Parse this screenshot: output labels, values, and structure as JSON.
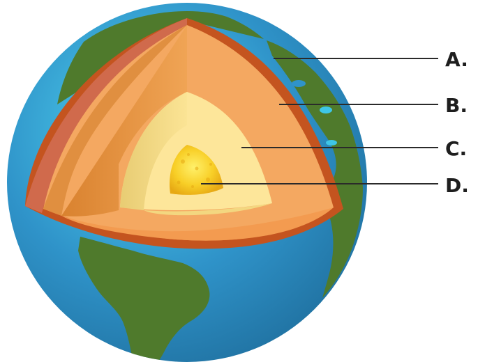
{
  "labels": [
    {
      "id": "a",
      "text": "A."
    },
    {
      "id": "b",
      "text": "B."
    },
    {
      "id": "c",
      "text": "C."
    },
    {
      "id": "d",
      "text": "D."
    }
  ],
  "colors": {
    "ocean": "#2f93c9",
    "ocean_highlight": "#3ec6e8",
    "land": "#4f7a2c",
    "crust": "#c4541f",
    "crust_left": "#d06a4c",
    "mantle": "#f4a861",
    "mantle_shadow": "#de8d3d",
    "outer_core": "#fde69a",
    "outer_core_shadow": "#ecd078",
    "inner_core": "#f5c21c",
    "leader_line": "#2a2a2a",
    "label": "#1e1e1e"
  }
}
